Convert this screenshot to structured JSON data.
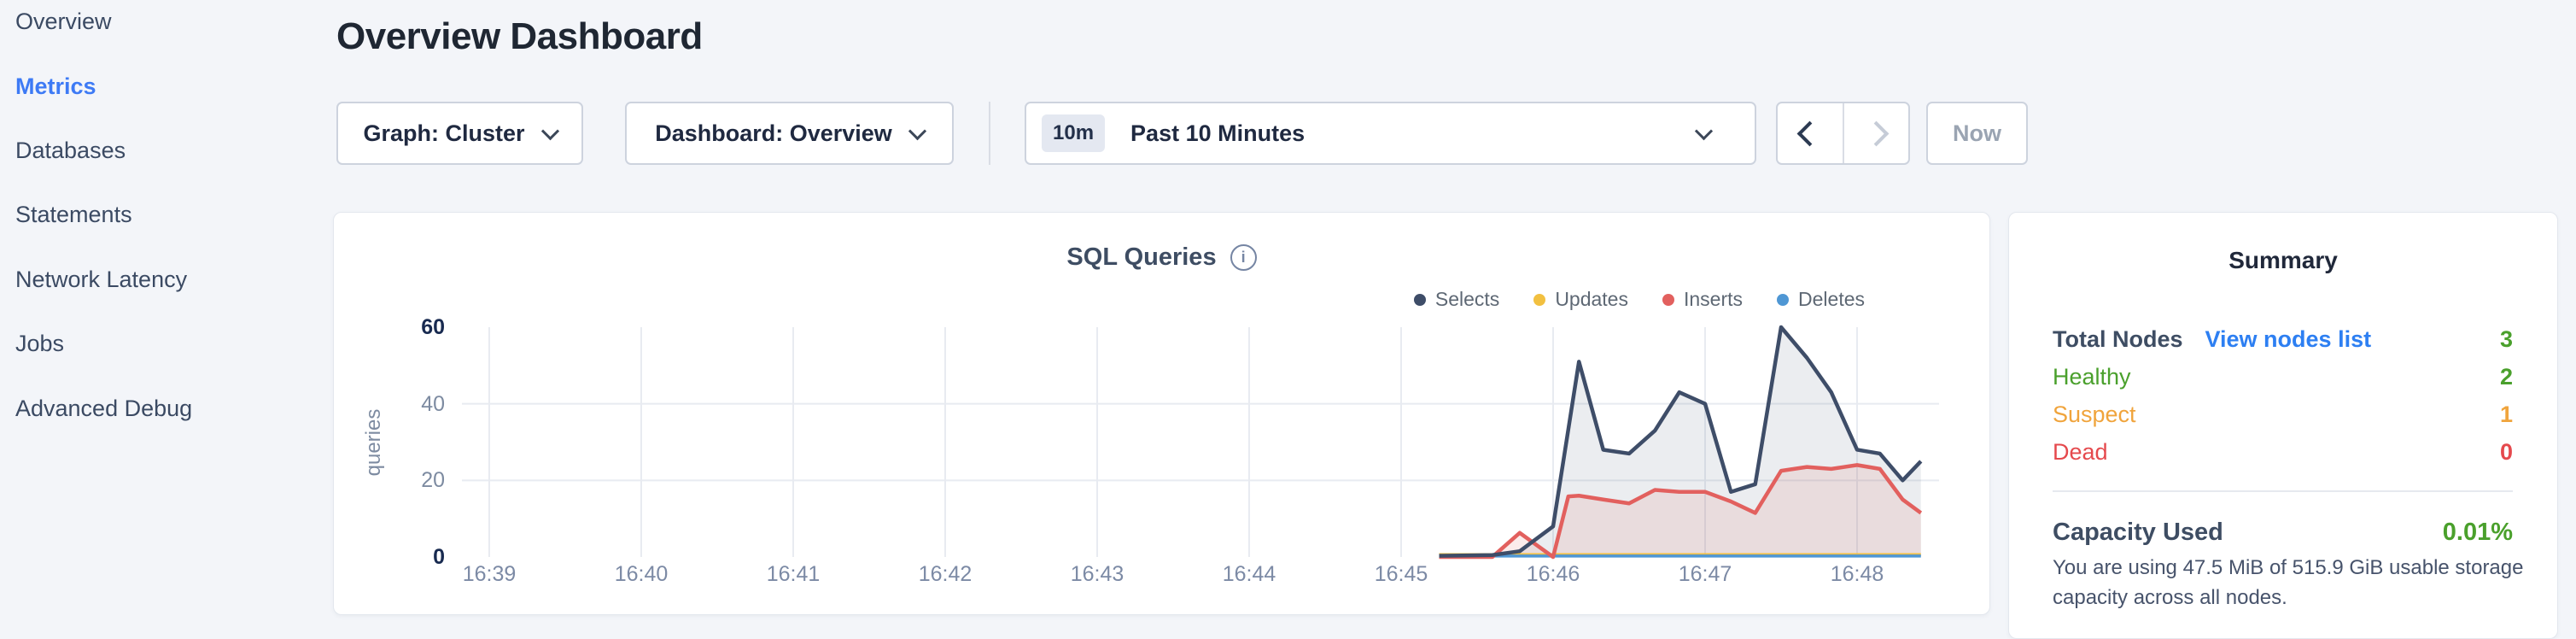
{
  "sidebar": {
    "items": [
      {
        "label": "Overview",
        "active": false
      },
      {
        "label": "Metrics",
        "active": true
      },
      {
        "label": "Databases",
        "active": false
      },
      {
        "label": "Statements",
        "active": false
      },
      {
        "label": "Network Latency",
        "active": false
      },
      {
        "label": "Jobs",
        "active": false
      },
      {
        "label": "Advanced Debug",
        "active": false
      }
    ],
    "active_color": "#3d7af5"
  },
  "header": {
    "title": "Overview Dashboard"
  },
  "toolbar": {
    "graph_dropdown_label": "Graph: Cluster",
    "dashboard_dropdown_label": "Dashboard: Overview",
    "time_range_badge": "10m",
    "time_range_label": "Past 10 Minutes",
    "now_label": "Now"
  },
  "chart": {
    "title": "SQL Queries",
    "info_icon_glyph": "i"
  },
  "chart_data": {
    "type": "area",
    "title": "SQL Queries",
    "ylabel": "queries",
    "ylim": [
      0,
      60
    ],
    "yticks": [
      0,
      20,
      40,
      60
    ],
    "xticks": [
      "16:39",
      "16:40",
      "16:41",
      "16:42",
      "16:43",
      "16:44",
      "16:45",
      "16:46",
      "16:47",
      "16:48"
    ],
    "x_unit": "minutes_after_16:39",
    "legend_position": "top-right",
    "grid": {
      "horizontal_at": [
        20,
        40
      ],
      "vertical": "every minute tick"
    },
    "series": [
      {
        "name": "Selects",
        "color": "#3e4d68",
        "fill": "rgba(62,77,104,0.10)",
        "x": [
          6.25,
          6.6,
          6.78,
          7.0,
          7.17,
          7.33,
          7.5,
          7.67,
          7.83,
          8.0,
          8.17,
          8.33,
          8.5,
          8.67,
          8.83,
          9.0,
          9.15,
          9.3,
          9.42
        ],
        "values": [
          0.3,
          0.5,
          1.5,
          8,
          51,
          28,
          27,
          33,
          43,
          40,
          17,
          19,
          60,
          52,
          43,
          28,
          27,
          20,
          25
        ]
      },
      {
        "name": "Updates",
        "color": "#f2c040",
        "fill": null,
        "x": [
          6.25,
          9.42
        ],
        "values": [
          0.6,
          0.6
        ]
      },
      {
        "name": "Inserts",
        "color": "#e2605e",
        "fill": "rgba(226,96,94,0.12)",
        "x": [
          6.25,
          6.6,
          6.78,
          7.0,
          7.1,
          7.17,
          7.33,
          7.5,
          7.67,
          7.83,
          8.0,
          8.17,
          8.33,
          8.5,
          8.67,
          8.83,
          9.0,
          9.15,
          9.3,
          9.42
        ],
        "values": [
          0,
          0,
          6.3,
          0,
          15.8,
          16,
          15,
          14,
          17.5,
          17,
          17,
          14.5,
          11.5,
          22.5,
          23.5,
          23,
          24,
          23,
          15,
          11.5
        ]
      },
      {
        "name": "Deletes",
        "color": "#4f97d4",
        "fill": null,
        "x": [
          6.25,
          9.42
        ],
        "values": [
          0.25,
          0.25
        ]
      }
    ]
  },
  "summary": {
    "title": "Summary",
    "rows": [
      {
        "label": "Total Nodes",
        "label_color": "#3e4d63",
        "label_bold": true,
        "link": "View nodes list",
        "value": "3",
        "value_color": "#4aa02c"
      },
      {
        "label": "Healthy",
        "label_color": "#4aa02c",
        "value": "2",
        "value_color": "#4aa02c"
      },
      {
        "label": "Suspect",
        "label_color": "#f0a43c",
        "value": "1",
        "value_color": "#f0a43c"
      },
      {
        "label": "Dead",
        "label_color": "#e5494d",
        "value": "0",
        "value_color": "#e5494d"
      }
    ],
    "capacity": {
      "label": "Capacity Used",
      "value": "0.01%",
      "value_color": "#4aa02c",
      "description": "You are using 47.5 MiB of 515.9 GiB usable storage capacity across all nodes."
    }
  }
}
